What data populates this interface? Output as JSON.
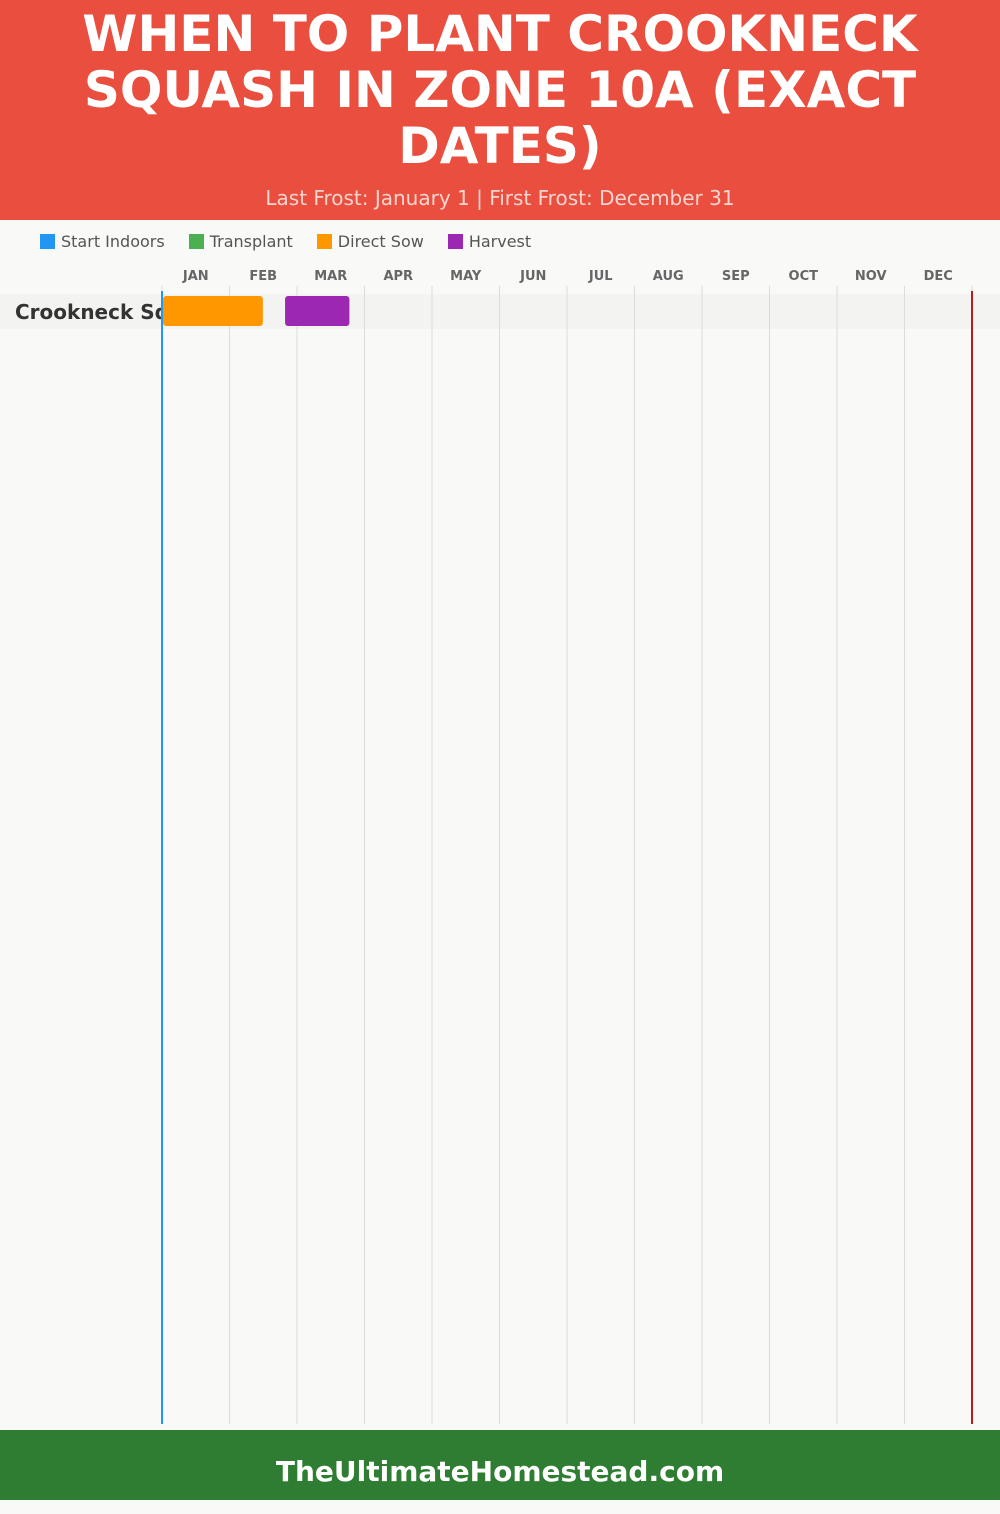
{
  "header": {
    "title": "When to Plant Crookneck Squash in Zone 10A (Exact Dates)",
    "subtitle": "Last Frost: January 1 | First Frost: December 31"
  },
  "legend": [
    {
      "label": "Start Indoors",
      "color": "#2196f3"
    },
    {
      "label": "Transplant",
      "color": "#4caf50"
    },
    {
      "label": "Direct Sow",
      "color": "#ff9800"
    },
    {
      "label": "Harvest",
      "color": "#9c27b0"
    }
  ],
  "footer": {
    "text": "TheUltimateHomestead.com"
  },
  "chart_data": {
    "type": "gantt",
    "months": [
      "JAN",
      "FEB",
      "MAR",
      "APR",
      "MAY",
      "JUN",
      "JUL",
      "AUG",
      "SEP",
      "OCT",
      "NOV",
      "DEC"
    ],
    "rows": [
      {
        "label": "Crookneck Squash",
        "bars": [
          {
            "series": "Direct Sow",
            "start": "Jan 1",
            "end": "Feb 15",
            "color": "#ff9800"
          },
          {
            "series": "Harvest",
            "start": "Feb 25",
            "end": "Mar 26",
            "color": "#9c27b0"
          }
        ]
      }
    ],
    "markers": [
      {
        "name": "Last Frost",
        "date": "Jan 1",
        "color": "#2196f3"
      },
      {
        "name": "First Frost",
        "date": "Dec 31",
        "color": "#b71c1c"
      }
    ]
  }
}
